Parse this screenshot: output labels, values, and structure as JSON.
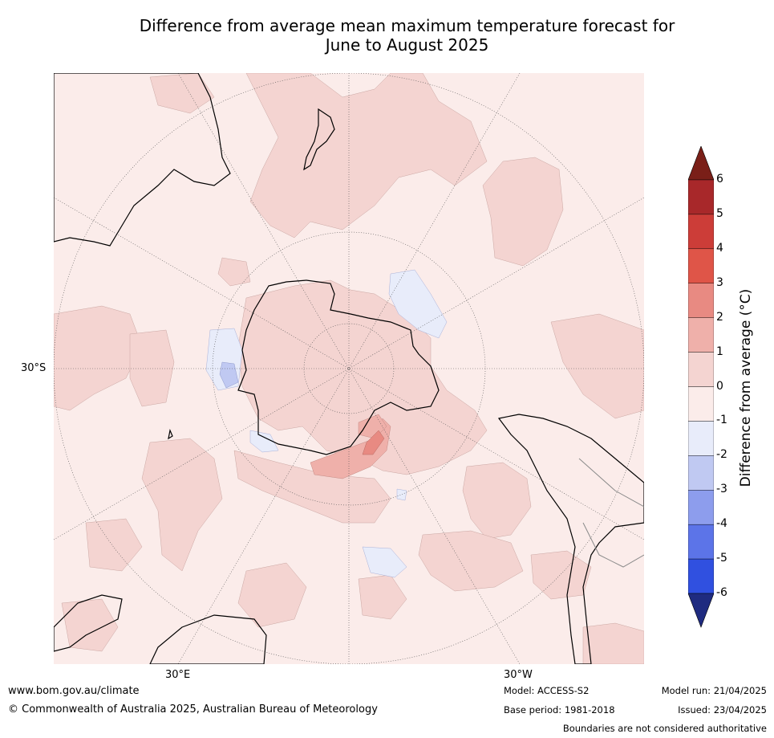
{
  "title_line1": "Difference from average mean maximum temperature forecast for",
  "title_line2": "June to August 2025",
  "labels": {
    "lat_30s": "30°S",
    "lon_30e": "30°E",
    "lon_30w": "30°W"
  },
  "colorbar": {
    "title": "Difference from average (°C)",
    "ticks": [
      "6",
      "5",
      "4",
      "3",
      "2",
      "1",
      "0",
      "-1",
      "-2",
      "-3",
      "-4",
      "-5",
      "-6"
    ],
    "colors": [
      "#7a1f18",
      "#a8282a",
      "#cc3d38",
      "#df5548",
      "#e88a82",
      "#efb0aa",
      "#f4d4d1",
      "#fbecea",
      "#e8ecfa",
      "#c0c9f2",
      "#8d9ded",
      "#5c74e8",
      "#3050e0",
      "#2a3bb0",
      "#1f2b80"
    ]
  },
  "footer": {
    "url": "www.bom.gov.au/climate",
    "copyright": "© Commonwealth of Australia 2025, Australian Bureau of Meteorology",
    "model": "Model: ACCESS-S2",
    "base_period": "Base period: 1981-2018",
    "model_run": "Model run: 21/04/2025",
    "issued": "Issued: 23/04/2025",
    "disclaimer": "Boundaries are not considered authoritative"
  }
}
